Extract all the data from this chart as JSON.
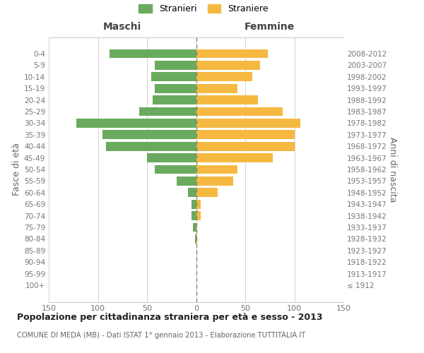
{
  "age_groups": [
    "100+",
    "95-99",
    "90-94",
    "85-89",
    "80-84",
    "75-79",
    "70-74",
    "65-69",
    "60-64",
    "55-59",
    "50-54",
    "45-49",
    "40-44",
    "35-39",
    "30-34",
    "25-29",
    "20-24",
    "15-19",
    "10-14",
    "5-9",
    "0-4"
  ],
  "birth_years": [
    "≤ 1912",
    "1913-1917",
    "1918-1922",
    "1923-1927",
    "1928-1932",
    "1933-1937",
    "1938-1942",
    "1943-1947",
    "1948-1952",
    "1953-1957",
    "1958-1962",
    "1963-1967",
    "1968-1972",
    "1973-1977",
    "1978-1982",
    "1983-1987",
    "1988-1992",
    "1993-1997",
    "1998-2002",
    "2003-2007",
    "2008-2012"
  ],
  "maschi": [
    0,
    0,
    0,
    0,
    1,
    3,
    5,
    5,
    8,
    20,
    42,
    50,
    92,
    95,
    122,
    58,
    44,
    42,
    46,
    42,
    88
  ],
  "femmine": [
    0,
    0,
    0,
    0,
    1,
    1,
    5,
    5,
    22,
    38,
    42,
    78,
    100,
    100,
    106,
    88,
    63,
    42,
    57,
    65,
    73
  ],
  "male_color": "#6aaa5e",
  "female_color": "#f5b942",
  "center_line_color": "#aaaaaa",
  "center_line_color2": "#888866",
  "grid_color": "#cccccc",
  "background_color": "#ffffff",
  "title": "Popolazione per cittadinanza straniera per età e sesso - 2013",
  "subtitle": "COMUNE DI MEDA (MB) - Dati ISTAT 1° gennaio 2013 - Elaborazione TUTTITALIA.IT",
  "xlabel_left": "Maschi",
  "xlabel_right": "Femmine",
  "ylabel_left": "Fasce di età",
  "ylabel_right": "Anni di nascita",
  "legend_male": "Stranieri",
  "legend_female": "Straniere",
  "xlim": 150
}
